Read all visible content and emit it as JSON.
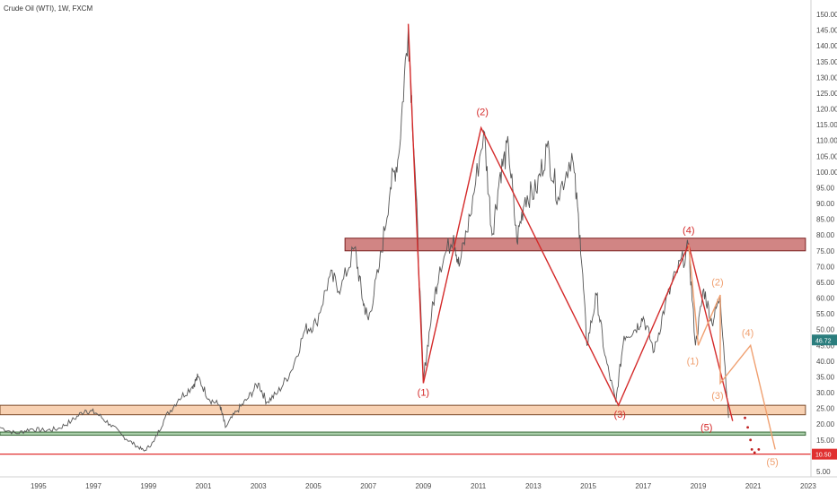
{
  "chart_data": {
    "type": "line",
    "title": "Crude Oil (WTI), 1W, FXCM",
    "x_range": [
      1993.7,
      2023.2
    ],
    "ylim": [
      5,
      152
    ],
    "y_ticks": [
      5,
      10,
      15,
      20,
      25,
      30,
      35,
      40,
      45,
      50,
      55,
      60,
      65,
      70,
      75,
      80,
      85,
      90,
      95,
      100,
      105,
      110,
      115,
      120,
      125,
      130,
      135,
      140,
      145,
      150
    ],
    "x_ticks": [
      {
        "label": "1995",
        "x": 1995.1
      },
      {
        "label": "1997",
        "x": 1997.1
      },
      {
        "label": "1999",
        "x": 1999.1
      },
      {
        "label": "2001",
        "x": 2001.1
      },
      {
        "label": "2003",
        "x": 2003.1
      },
      {
        "label": "2005",
        "x": 2005.1
      },
      {
        "label": "2007",
        "x": 2007.1
      },
      {
        "label": "2009",
        "x": 2009.1
      },
      {
        "label": "2011",
        "x": 2011.1
      },
      {
        "label": "2013",
        "x": 2013.1
      },
      {
        "label": "2015",
        "x": 2015.1
      },
      {
        "label": "2017",
        "x": 2017.1
      },
      {
        "label": "2019",
        "x": 2019.1
      },
      {
        "label": "2021",
        "x": 2021.1
      },
      {
        "label": "2023",
        "x": 2023.1
      }
    ],
    "grid": false,
    "price_series": {
      "color": "#555555",
      "points": [
        [
          1993.7,
          19
        ],
        [
          1994.3,
          17
        ],
        [
          1994.8,
          18.5
        ],
        [
          1995.3,
          18
        ],
        [
          1995.8,
          18.5
        ],
        [
          1996.3,
          21
        ],
        [
          1996.8,
          24.5
        ],
        [
          1997.2,
          23.5
        ],
        [
          1997.7,
          20
        ],
        [
          1998.2,
          16
        ],
        [
          1998.6,
          13.5
        ],
        [
          1998.95,
          11.5
        ],
        [
          1999.3,
          14.5
        ],
        [
          1999.7,
          22
        ],
        [
          2000.2,
          28
        ],
        [
          2000.7,
          32
        ],
        [
          2000.9,
          35
        ],
        [
          2001.3,
          28
        ],
        [
          2001.7,
          26
        ],
        [
          2001.9,
          19
        ],
        [
          2002.3,
          24
        ],
        [
          2002.7,
          28
        ],
        [
          2003.1,
          33
        ],
        [
          2003.4,
          27
        ],
        [
          2003.8,
          30
        ],
        [
          2004.3,
          37
        ],
        [
          2004.8,
          50
        ],
        [
          2005.2,
          52
        ],
        [
          2005.7,
          67
        ],
        [
          2006.1,
          63
        ],
        [
          2006.6,
          76
        ],
        [
          2006.9,
          59
        ],
        [
          2007.1,
          53
        ],
        [
          2007.5,
          70
        ],
        [
          2007.9,
          95
        ],
        [
          2008.2,
          105
        ],
        [
          2008.55,
          146
        ],
        [
          2008.8,
          100
        ],
        [
          2009.1,
          34
        ],
        [
          2009.4,
          55
        ],
        [
          2009.7,
          70
        ],
        [
          2010.2,
          80
        ],
        [
          2010.4,
          70
        ],
        [
          2010.8,
          86
        ],
        [
          2011.3,
          113
        ],
        [
          2011.6,
          80
        ],
        [
          2011.9,
          100
        ],
        [
          2012.2,
          108
        ],
        [
          2012.5,
          78
        ],
        [
          2012.8,
          92
        ],
        [
          2013.2,
          94
        ],
        [
          2013.6,
          108
        ],
        [
          2014.0,
          92
        ],
        [
          2014.5,
          106
        ],
        [
          2014.8,
          80
        ],
        [
          2015.05,
          45
        ],
        [
          2015.4,
          61
        ],
        [
          2015.7,
          42
        ],
        [
          2016.1,
          27
        ],
        [
          2016.4,
          48
        ],
        [
          2016.8,
          50
        ],
        [
          2017.1,
          54
        ],
        [
          2017.5,
          43
        ],
        [
          2017.9,
          58
        ],
        [
          2018.3,
          68
        ],
        [
          2018.75,
          76
        ],
        [
          2019.0,
          45
        ],
        [
          2019.3,
          63
        ],
        [
          2019.6,
          52
        ],
        [
          2019.9,
          61
        ],
        [
          2020.2,
          22
        ]
      ]
    },
    "elliott_waves": [
      {
        "color": "#d42a2a",
        "labels": [
          "(1)",
          "(2)",
          "(3)",
          "(4)",
          "(5)"
        ],
        "points": [
          [
            2008.55,
            147
          ],
          [
            2009.1,
            33
          ],
          [
            2011.2,
            114
          ],
          [
            2016.2,
            26
          ],
          [
            2018.75,
            77
          ],
          [
            2020.35,
            21
          ]
        ]
      },
      {
        "color": "#f0a070",
        "labels": [
          "(1)",
          "(2)",
          "(3)",
          "(4)",
          "(5)"
        ],
        "points": [
          [
            2018.75,
            77
          ],
          [
            2019.1,
            45
          ],
          [
            2019.9,
            61
          ],
          [
            2019.9,
            33
          ],
          [
            2021.0,
            45
          ],
          [
            2021.9,
            12
          ]
        ]
      }
    ],
    "wave_label_positions": [
      {
        "text": "(1)",
        "x": 2009.1,
        "y": 29,
        "color": "#d42a2a"
      },
      {
        "text": "(2)",
        "x": 2011.25,
        "y": 118,
        "color": "#d42a2a"
      },
      {
        "text": "(3)",
        "x": 2016.25,
        "y": 22,
        "color": "#d42a2a"
      },
      {
        "text": "(4)",
        "x": 2018.75,
        "y": 80.5,
        "color": "#d42a2a"
      },
      {
        "text": "(5)",
        "x": 2019.4,
        "y": 18,
        "color": "#d42a2a"
      },
      {
        "text": "(1)",
        "x": 2018.9,
        "y": 39,
        "color": "#f0a070"
      },
      {
        "text": "(2)",
        "x": 2019.8,
        "y": 64,
        "color": "#f0a070"
      },
      {
        "text": "(3)",
        "x": 2019.8,
        "y": 28,
        "color": "#f0a070"
      },
      {
        "text": "(4)",
        "x": 2020.9,
        "y": 48,
        "color": "#f0a070"
      },
      {
        "text": "(5)",
        "x": 2021.8,
        "y": 7,
        "color": "#f0a070"
      }
    ],
    "zones": [
      {
        "y1": 75,
        "y2": 79,
        "x1": 2006.25,
        "x2": 2023.0,
        "fill": "#c9706f",
        "stroke": "#7a2020"
      },
      {
        "y1": 23,
        "y2": 26,
        "x1": 1993.7,
        "x2": 2023.0,
        "fill": "#f7c9a4",
        "stroke": "#7a4a2a"
      },
      {
        "y1": 16.5,
        "y2": 17.5,
        "x1": 1993.7,
        "x2": 2023.0,
        "fill": "#9bc79b",
        "stroke": "#3a6a3a"
      }
    ],
    "support_line": {
      "y": 10.5,
      "color": "#e03030"
    },
    "dotted_path": [
      [
        2020.8,
        22
      ],
      [
        2020.9,
        19
      ],
      [
        2021.0,
        15
      ],
      [
        2021.05,
        12
      ],
      [
        2021.15,
        11
      ],
      [
        2021.3,
        12
      ]
    ],
    "current_price": {
      "value": "46.72",
      "y": 46.72,
      "color": "#2a7d7d"
    },
    "support_price": {
      "value": "10.50",
      "y": 10.5,
      "color": "#e03030"
    }
  }
}
